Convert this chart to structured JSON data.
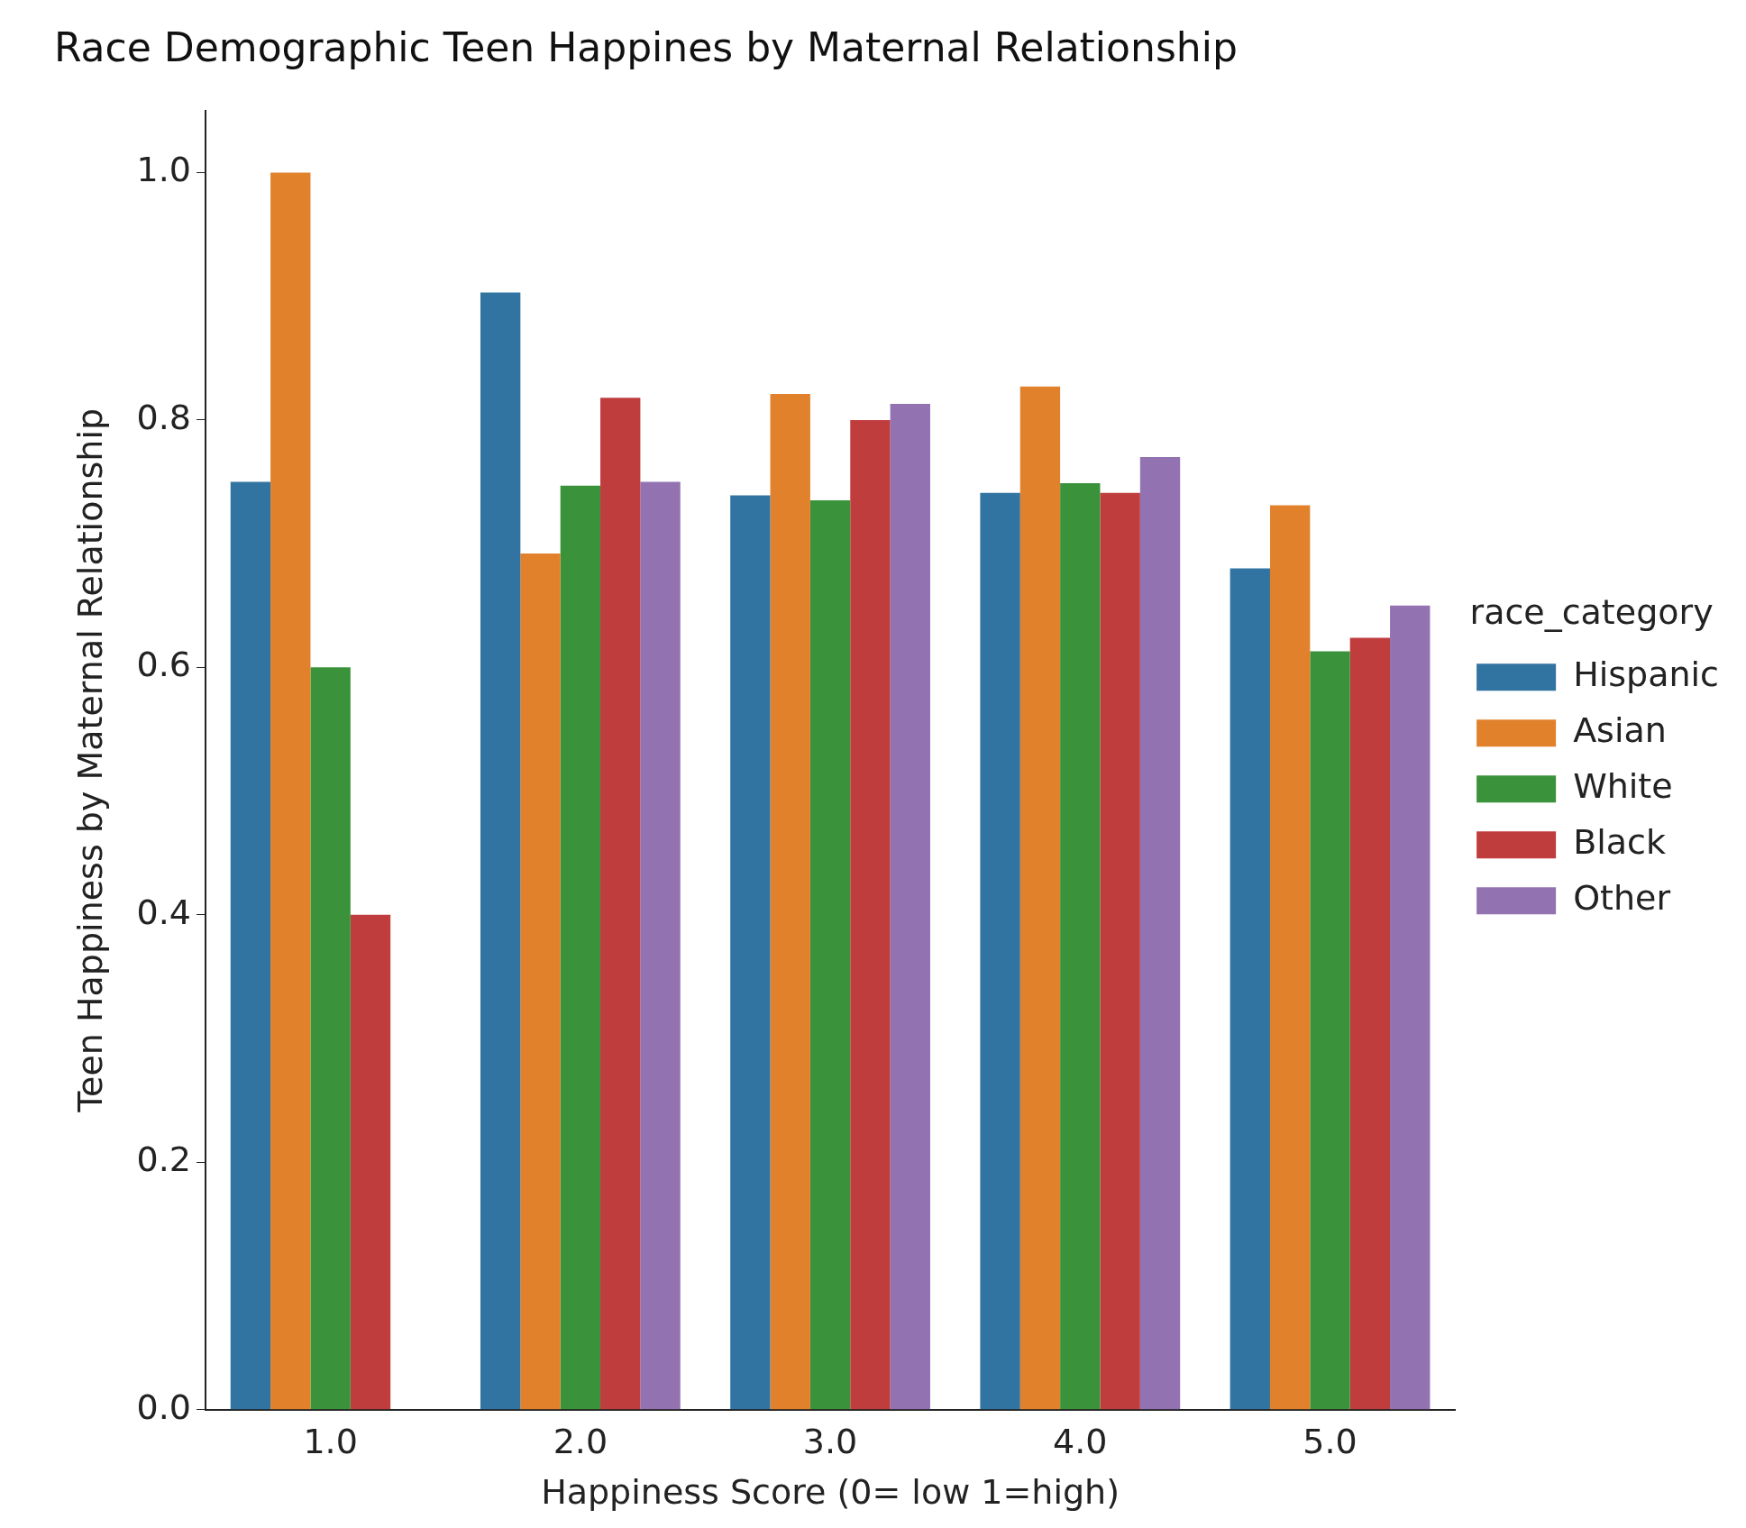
{
  "chart_data": {
    "type": "bar",
    "title": "Race Demographic Teen Happines by Maternal Relationship",
    "xlabel": "Happiness Score (0= low 1=high)",
    "ylabel": "Teen Happiness by Maternal Relationship",
    "legend_title": "race_category",
    "categories": [
      "1.0",
      "2.0",
      "3.0",
      "4.0",
      "5.0"
    ],
    "series": [
      {
        "name": "Hispanic",
        "color": "#3274a1",
        "values": [
          0.75,
          0.903,
          0.739,
          0.741,
          0.68
        ]
      },
      {
        "name": "Asian",
        "color": "#e1812c",
        "values": [
          1.0,
          0.692,
          0.821,
          0.827,
          0.731
        ]
      },
      {
        "name": "White",
        "color": "#3a923a",
        "values": [
          0.6,
          0.747,
          0.735,
          0.749,
          0.613
        ]
      },
      {
        "name": "Black",
        "color": "#c03d3e",
        "values": [
          0.4,
          0.818,
          0.8,
          0.741,
          0.624
        ]
      },
      {
        "name": "Other",
        "color": "#9372b2",
        "values": [
          null,
          0.75,
          0.813,
          0.77,
          0.65
        ]
      }
    ],
    "ylim": [
      0,
      1.05
    ],
    "yticks": [
      {
        "value": 0,
        "label": "0.0"
      },
      0.2,
      0.4,
      0.6,
      0.8,
      {
        "value": 1,
        "label": "1.0"
      }
    ],
    "grid": false,
    "legend": "right"
  }
}
